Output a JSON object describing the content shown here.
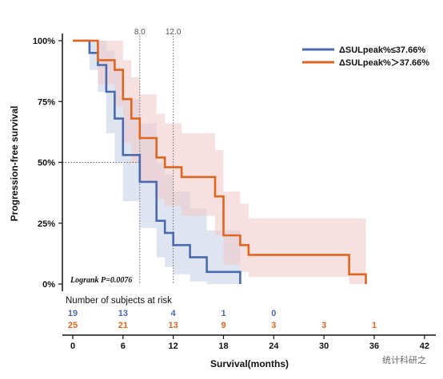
{
  "chart_data": {
    "type": "line",
    "title": "",
    "xlabel": "Survival(months)",
    "ylabel": "Progression-free survival",
    "xlim": [
      0,
      42
    ],
    "ylim": [
      0,
      100
    ],
    "x_ticks": [
      "0",
      "6",
      "12",
      "18",
      "24",
      "30",
      "36",
      "42"
    ],
    "y_ticks": [
      "0%",
      "25%",
      "50%",
      "75%",
      "100%"
    ],
    "reference_lines": {
      "x": [
        8.0,
        12.0
      ],
      "y": [
        50
      ],
      "x_labels": [
        "8.0",
        "12.0"
      ]
    },
    "legend_position": "top-right",
    "annotation": "Logrank P=0.0076",
    "series": [
      {
        "name": "ΔSULpeak%≤37.66%",
        "color": "#4a6ab0",
        "band_color": "#c5cde6",
        "x": [
          0,
          2,
          3,
          4,
          5,
          6,
          7,
          8,
          10,
          11,
          12,
          14,
          16,
          20
        ],
        "y": [
          100,
          95,
          90,
          79,
          68,
          53,
          53,
          42,
          26,
          21,
          16,
          11,
          5,
          0
        ],
        "ci_upper": [
          100,
          100,
          100,
          96,
          89,
          76,
          76,
          66,
          50,
          45,
          38,
          31,
          22,
          22
        ],
        "ci_lower": [
          100,
          88,
          79,
          62,
          50,
          34,
          34,
          23,
          11,
          7,
          4,
          1,
          0,
          0
        ]
      },
      {
        "name": "ΔSULpeak%＞37.66%",
        "color": "#e0661f",
        "band_color": "#f1c7c7",
        "x": [
          0,
          3,
          5,
          6,
          7,
          8,
          10,
          11,
          13,
          17,
          18,
          20,
          21,
          33,
          35
        ],
        "y": [
          100,
          92,
          88,
          76,
          68,
          60,
          52,
          48,
          44,
          36,
          20,
          16,
          12,
          4,
          0
        ],
        "ci_upper": [
          100,
          100,
          100,
          92,
          85,
          78,
          70,
          66,
          62,
          55,
          38,
          33,
          27,
          27,
          27
        ],
        "ci_lower": [
          100,
          82,
          73,
          58,
          50,
          42,
          35,
          32,
          28,
          20,
          8,
          5,
          3,
          0,
          0
        ]
      }
    ]
  },
  "risk_table": {
    "title": "Number of subjects at risk",
    "x": [
      0,
      6,
      12,
      18,
      24,
      30,
      36
    ],
    "rows": [
      {
        "color": "#4a6ab0",
        "values": [
          "19",
          "13",
          "4",
          "1",
          "0"
        ]
      },
      {
        "color": "#e0661f",
        "values": [
          "25",
          "21",
          "13",
          "9",
          "3",
          "3",
          "1"
        ]
      }
    ]
  },
  "watermark": "统计科研之"
}
